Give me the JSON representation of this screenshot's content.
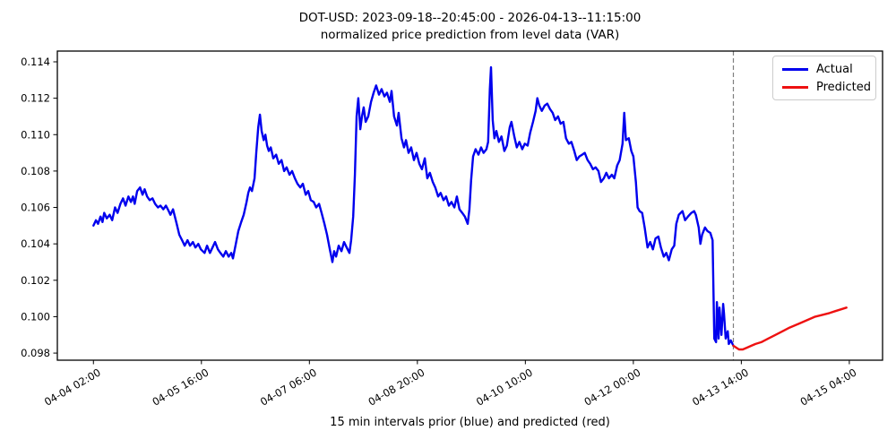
{
  "title": {
    "line1": "DOT-USD: 2023-09-18--20:45:00 - 2026-04-13--11:15:00",
    "line2": "normalized price prediction from level data (VAR)"
  },
  "xlabel": "15 min intervals prior (blue) and predicted (red)",
  "legend": {
    "items": [
      {
        "label": "Actual",
        "color": "#0000ee"
      },
      {
        "label": "Predicted",
        "color": "#ee1111"
      }
    ]
  },
  "colors": {
    "actual": "#0000ee",
    "predicted": "#ee1111",
    "prediction_start_line": "#7f7f7f",
    "axis": "#000000",
    "background": "#ffffff"
  },
  "chart_data": {
    "type": "line",
    "title": "DOT-USD: 2023-09-18--20:45:00 - 2026-04-13--11:15:00 normalized price prediction from level data (VAR)",
    "xlabel": "15 min intervals prior (blue) and predicted (red)",
    "ylabel": "",
    "x_unit": "hours since 04-04 02:00 (15 min interval data)",
    "xlim": [
      -12.7,
      277.7
    ],
    "ylim": [
      0.09761,
      0.11459
    ],
    "grid": false,
    "legend_position": "upper right",
    "prediction_start_t": 225.2,
    "x_ticks": [
      {
        "t": 0,
        "label": "04-04 02:00"
      },
      {
        "t": 38,
        "label": "04-05 16:00"
      },
      {
        "t": 76,
        "label": "04-07 06:00"
      },
      {
        "t": 114,
        "label": "04-08 20:00"
      },
      {
        "t": 152,
        "label": "04-10 10:00"
      },
      {
        "t": 190,
        "label": "04-12 00:00"
      },
      {
        "t": 228,
        "label": "04-13 14:00"
      },
      {
        "t": 266,
        "label": "04-15 04:00"
      }
    ],
    "y_ticks": [
      0.098,
      0.1,
      0.102,
      0.104,
      0.106,
      0.108,
      0.11,
      0.112,
      0.114
    ],
    "series": [
      {
        "name": "Actual",
        "color": "#0000ee",
        "points": [
          [
            0,
            0.105
          ],
          [
            0.9,
            0.1053
          ],
          [
            1.6,
            0.1051
          ],
          [
            2.5,
            0.1055
          ],
          [
            3.2,
            0.1052
          ],
          [
            3.8,
            0.1057
          ],
          [
            4.7,
            0.1054
          ],
          [
            5.7,
            0.1056
          ],
          [
            6.6,
            0.1053
          ],
          [
            7.6,
            0.106
          ],
          [
            8.5,
            0.1057
          ],
          [
            9.5,
            0.1062
          ],
          [
            10.4,
            0.1065
          ],
          [
            11.3,
            0.1061
          ],
          [
            12.3,
            0.1066
          ],
          [
            13.2,
            0.1063
          ],
          [
            13.9,
            0.1066
          ],
          [
            14.5,
            0.1062
          ],
          [
            15.4,
            0.1069
          ],
          [
            16.4,
            0.1071
          ],
          [
            17.3,
            0.1067
          ],
          [
            18,
            0.107
          ],
          [
            18.9,
            0.1066
          ],
          [
            19.8,
            0.1064
          ],
          [
            20.8,
            0.1065
          ],
          [
            21.7,
            0.1062
          ],
          [
            22.7,
            0.106
          ],
          [
            23.6,
            0.1061
          ],
          [
            24.6,
            0.1059
          ],
          [
            25.5,
            0.1061
          ],
          [
            26.5,
            0.1058
          ],
          [
            27.1,
            0.1056
          ],
          [
            28,
            0.1059
          ],
          [
            29.3,
            0.1051
          ],
          [
            30.2,
            0.1045
          ],
          [
            31.5,
            0.1041
          ],
          [
            32.1,
            0.1039
          ],
          [
            33.1,
            0.1042
          ],
          [
            34,
            0.1039
          ],
          [
            35,
            0.1041
          ],
          [
            35.9,
            0.1038
          ],
          [
            36.9,
            0.104
          ],
          [
            37.8,
            0.1037
          ],
          [
            39.1,
            0.1035
          ],
          [
            40,
            0.1039
          ],
          [
            41,
            0.1035
          ],
          [
            41.9,
            0.1038
          ],
          [
            42.8,
            0.1041
          ],
          [
            43.8,
            0.1037
          ],
          [
            44.7,
            0.1035
          ],
          [
            45.7,
            0.1033
          ],
          [
            46.6,
            0.1036
          ],
          [
            47.6,
            0.1033
          ],
          [
            48.5,
            0.1035
          ],
          [
            49.1,
            0.1032
          ],
          [
            50.1,
            0.104
          ],
          [
            51,
            0.1047
          ],
          [
            52,
            0.1052
          ],
          [
            52.9,
            0.1056
          ],
          [
            53.9,
            0.1063
          ],
          [
            54.5,
            0.1068
          ],
          [
            55.1,
            0.1071
          ],
          [
            55.8,
            0.1069
          ],
          [
            56.7,
            0.1076
          ],
          [
            57.3,
            0.109
          ],
          [
            58,
            0.1104
          ],
          [
            58.6,
            0.1111
          ],
          [
            59.2,
            0.1102
          ],
          [
            59.9,
            0.1097
          ],
          [
            60.5,
            0.11
          ],
          [
            61.1,
            0.1094
          ],
          [
            61.7,
            0.1091
          ],
          [
            62.4,
            0.1093
          ],
          [
            63.3,
            0.1087
          ],
          [
            64.3,
            0.1089
          ],
          [
            65.2,
            0.1084
          ],
          [
            66.2,
            0.1086
          ],
          [
            67.1,
            0.108
          ],
          [
            68,
            0.1082
          ],
          [
            69,
            0.1078
          ],
          [
            69.9,
            0.108
          ],
          [
            70.9,
            0.1076
          ],
          [
            71.8,
            0.1073
          ],
          [
            72.8,
            0.1071
          ],
          [
            73.7,
            0.1073
          ],
          [
            74.7,
            0.1067
          ],
          [
            75.6,
            0.1069
          ],
          [
            76.5,
            0.1064
          ],
          [
            77.5,
            0.1063
          ],
          [
            78.4,
            0.106
          ],
          [
            79.4,
            0.1062
          ],
          [
            80.3,
            0.1057
          ],
          [
            81.3,
            0.1051
          ],
          [
            82.2,
            0.1045
          ],
          [
            83.2,
            0.1037
          ],
          [
            84.1,
            0.103
          ],
          [
            84.7,
            0.1036
          ],
          [
            85.4,
            0.1033
          ],
          [
            86.3,
            0.1039
          ],
          [
            87.3,
            0.1036
          ],
          [
            88.2,
            0.1041
          ],
          [
            89.1,
            0.1038
          ],
          [
            90.1,
            0.1035
          ],
          [
            90.7,
            0.1042
          ],
          [
            91.4,
            0.1055
          ],
          [
            92,
            0.1078
          ],
          [
            92.6,
            0.111
          ],
          [
            93.2,
            0.112
          ],
          [
            93.9,
            0.1103
          ],
          [
            94.5,
            0.111
          ],
          [
            95.1,
            0.1115
          ],
          [
            95.8,
            0.1107
          ],
          [
            96.7,
            0.111
          ],
          [
            97.7,
            0.1118
          ],
          [
            98.6,
            0.1123
          ],
          [
            99.5,
            0.1127
          ],
          [
            100.5,
            0.1122
          ],
          [
            101.4,
            0.1125
          ],
          [
            102.4,
            0.1121
          ],
          [
            103.3,
            0.1123
          ],
          [
            104.3,
            0.1118
          ],
          [
            104.9,
            0.1124
          ],
          [
            105.8,
            0.111
          ],
          [
            106.8,
            0.1105
          ],
          [
            107.4,
            0.1112
          ],
          [
            108.4,
            0.1098
          ],
          [
            109.3,
            0.1093
          ],
          [
            110,
            0.1097
          ],
          [
            110.9,
            0.109
          ],
          [
            111.8,
            0.1093
          ],
          [
            112.8,
            0.1086
          ],
          [
            113.7,
            0.109
          ],
          [
            114.7,
            0.1084
          ],
          [
            115.6,
            0.1081
          ],
          [
            116.6,
            0.1087
          ],
          [
            117.5,
            0.1076
          ],
          [
            118.4,
            0.1079
          ],
          [
            119.4,
            0.1074
          ],
          [
            120.3,
            0.1071
          ],
          [
            121.3,
            0.1066
          ],
          [
            122.2,
            0.1068
          ],
          [
            123.2,
            0.1064
          ],
          [
            124.1,
            0.1066
          ],
          [
            125.1,
            0.1061
          ],
          [
            126,
            0.1063
          ],
          [
            127,
            0.106
          ],
          [
            127.9,
            0.1066
          ],
          [
            128.8,
            0.1059
          ],
          [
            129.8,
            0.1057
          ],
          [
            130.7,
            0.1055
          ],
          [
            131.7,
            0.1051
          ],
          [
            132.3,
            0.1059
          ],
          [
            132.9,
            0.1075
          ],
          [
            133.6,
            0.1088
          ],
          [
            134.5,
            0.1092
          ],
          [
            135.5,
            0.1089
          ],
          [
            136.4,
            0.1093
          ],
          [
            137.3,
            0.109
          ],
          [
            138.3,
            0.1092
          ],
          [
            138.9,
            0.1096
          ],
          [
            139.5,
            0.1125
          ],
          [
            139.9,
            0.1137
          ],
          [
            140.5,
            0.1108
          ],
          [
            141.1,
            0.1098
          ],
          [
            141.8,
            0.1102
          ],
          [
            142.7,
            0.1096
          ],
          [
            143.6,
            0.1099
          ],
          [
            144.6,
            0.1091
          ],
          [
            145.5,
            0.1094
          ],
          [
            146.5,
            0.1104
          ],
          [
            147.1,
            0.1107
          ],
          [
            148.1,
            0.1099
          ],
          [
            149,
            0.1093
          ],
          [
            149.9,
            0.1096
          ],
          [
            150.9,
            0.1092
          ],
          [
            151.8,
            0.1095
          ],
          [
            152.8,
            0.1094
          ],
          [
            153.7,
            0.1101
          ],
          [
            154.7,
            0.1107
          ],
          [
            155.6,
            0.1113
          ],
          [
            156.2,
            0.112
          ],
          [
            156.9,
            0.1116
          ],
          [
            157.8,
            0.1113
          ],
          [
            158.8,
            0.1116
          ],
          [
            159.7,
            0.1117
          ],
          [
            160.7,
            0.1114
          ],
          [
            161.6,
            0.1112
          ],
          [
            162.5,
            0.1108
          ],
          [
            163.5,
            0.111
          ],
          [
            164.4,
            0.1106
          ],
          [
            165.4,
            0.1107
          ],
          [
            166.3,
            0.1098
          ],
          [
            167.3,
            0.1095
          ],
          [
            168.2,
            0.1096
          ],
          [
            169.2,
            0.1091
          ],
          [
            170.1,
            0.1086
          ],
          [
            171,
            0.1088
          ],
          [
            172,
            0.1089
          ],
          [
            172.9,
            0.109
          ],
          [
            173.9,
            0.1086
          ],
          [
            174.8,
            0.1084
          ],
          [
            175.8,
            0.1081
          ],
          [
            176.7,
            0.1082
          ],
          [
            177.7,
            0.108
          ],
          [
            178.6,
            0.1074
          ],
          [
            179.6,
            0.1076
          ],
          [
            180.5,
            0.1079
          ],
          [
            181.4,
            0.1076
          ],
          [
            182.4,
            0.1078
          ],
          [
            183.3,
            0.1076
          ],
          [
            184.3,
            0.1083
          ],
          [
            185.2,
            0.1086
          ],
          [
            186.2,
            0.1095
          ],
          [
            186.8,
            0.1112
          ],
          [
            187.4,
            0.1097
          ],
          [
            188.4,
            0.1098
          ],
          [
            189.3,
            0.1091
          ],
          [
            190,
            0.1088
          ],
          [
            190.9,
            0.1074
          ],
          [
            191.5,
            0.106
          ],
          [
            192.2,
            0.1058
          ],
          [
            193.1,
            0.1057
          ],
          [
            194,
            0.1049
          ],
          [
            195,
            0.1038
          ],
          [
            195.9,
            0.1041
          ],
          [
            196.9,
            0.1037
          ],
          [
            197.8,
            0.1043
          ],
          [
            198.8,
            0.1044
          ],
          [
            199.7,
            0.1038
          ],
          [
            200.7,
            0.1033
          ],
          [
            201.6,
            0.1035
          ],
          [
            202.5,
            0.1031
          ],
          [
            203.5,
            0.1037
          ],
          [
            204.4,
            0.1039
          ],
          [
            205.1,
            0.1051
          ],
          [
            206,
            0.1056
          ],
          [
            207.3,
            0.1058
          ],
          [
            208.2,
            0.1053
          ],
          [
            209.2,
            0.1055
          ],
          [
            210.4,
            0.1057
          ],
          [
            211.4,
            0.1058
          ],
          [
            212,
            0.1056
          ],
          [
            213,
            0.1049
          ],
          [
            213.6,
            0.104
          ],
          [
            214.2,
            0.1045
          ],
          [
            215.2,
            0.1049
          ],
          [
            216.1,
            0.1047
          ],
          [
            217.1,
            0.1046
          ],
          [
            217.9,
            0.1042
          ],
          [
            218.5,
            0.0988
          ],
          [
            219.1,
            0.0986
          ],
          [
            219.4,
            0.1008
          ],
          [
            220,
            0.0988
          ],
          [
            220.3,
            0.1005
          ],
          [
            221,
            0.099
          ],
          [
            221.6,
            0.1007
          ],
          [
            221.9,
            0.1002
          ],
          [
            222.5,
            0.0988
          ],
          [
            223.2,
            0.0992
          ],
          [
            223.6,
            0.0985
          ],
          [
            224.3,
            0.0987
          ],
          [
            225.2,
            0.0984
          ]
        ]
      },
      {
        "name": "Predicted",
        "color": "#ee1111",
        "points": [
          [
            225.2,
            0.0984
          ],
          [
            226.2,
            0.0983
          ],
          [
            227.2,
            0.0982
          ],
          [
            228.5,
            0.0982
          ],
          [
            230,
            0.0983
          ],
          [
            231.5,
            0.0984
          ],
          [
            233,
            0.0985
          ],
          [
            235,
            0.0986
          ],
          [
            237.5,
            0.0988
          ],
          [
            240,
            0.099
          ],
          [
            242.5,
            0.0992
          ],
          [
            245,
            0.0994
          ],
          [
            248,
            0.0996
          ],
          [
            251,
            0.0998
          ],
          [
            254,
            0.1
          ],
          [
            256.5,
            0.1001
          ],
          [
            259,
            0.1002
          ],
          [
            261,
            0.1003
          ],
          [
            263,
            0.1004
          ],
          [
            265,
            0.1005
          ]
        ]
      }
    ]
  }
}
